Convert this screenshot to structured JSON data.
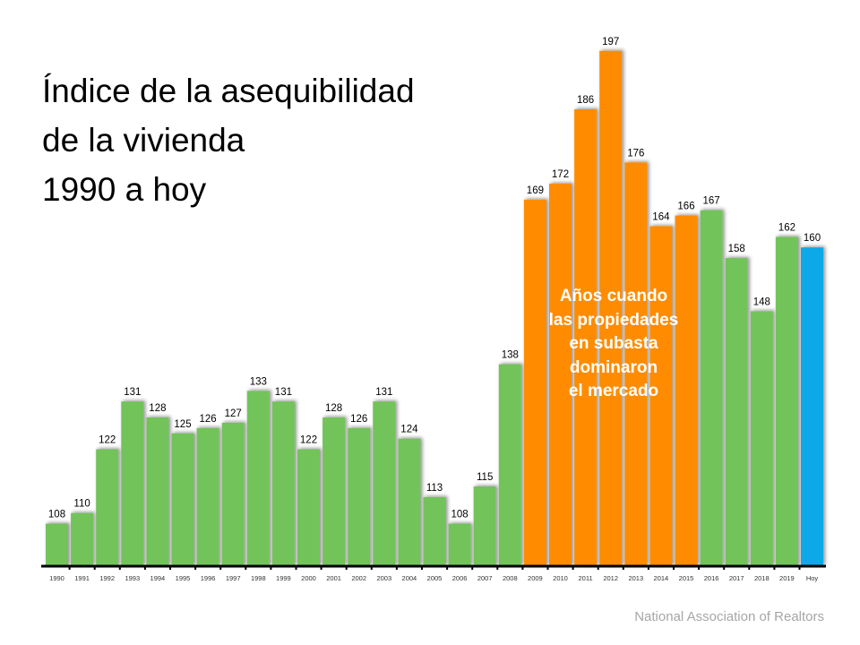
{
  "title_lines": [
    "Índice de la asequibilidad",
    "de la vivienda",
    "1990 a hoy"
  ],
  "annotation_lines": [
    "Años cuando",
    "las propiedades",
    "en subasta",
    "dominaron",
    "el mercado"
  ],
  "source": "National Association of Realtors",
  "colors": {
    "normal": "#72c35a",
    "foreclosure": "#ff8c00",
    "current": "#10a8e8",
    "axis": "#000000"
  },
  "chart_data": {
    "type": "bar",
    "title": "Índice de la asequibilidad de la vivienda 1990 a hoy",
    "xlabel": "",
    "ylabel": "",
    "ylim": [
      100,
      200
    ],
    "grid": false,
    "categories": [
      "1990",
      "1991",
      "1992",
      "1993",
      "1994",
      "1995",
      "1996",
      "1997",
      "1998",
      "1999",
      "2000",
      "2001",
      "2002",
      "2003",
      "2004",
      "2005",
      "2006",
      "2007",
      "2008",
      "2009",
      "2010",
      "2011",
      "2012",
      "2013",
      "2014",
      "2015",
      "2016",
      "2017",
      "2018",
      "2019",
      "Hoy"
    ],
    "values": [
      108,
      110,
      122,
      131,
      128,
      125,
      126,
      127,
      133,
      131,
      122,
      128,
      126,
      131,
      124,
      113,
      108,
      115,
      138,
      169,
      172,
      186,
      197,
      176,
      164,
      166,
      167,
      158,
      148,
      162,
      160
    ],
    "bar_groups": [
      "normal",
      "normal",
      "normal",
      "normal",
      "normal",
      "normal",
      "normal",
      "normal",
      "normal",
      "normal",
      "normal",
      "normal",
      "normal",
      "normal",
      "normal",
      "normal",
      "normal",
      "normal",
      "normal",
      "foreclosure",
      "foreclosure",
      "foreclosure",
      "foreclosure",
      "foreclosure",
      "foreclosure",
      "foreclosure",
      "normal",
      "normal",
      "normal",
      "normal",
      "current"
    ]
  }
}
